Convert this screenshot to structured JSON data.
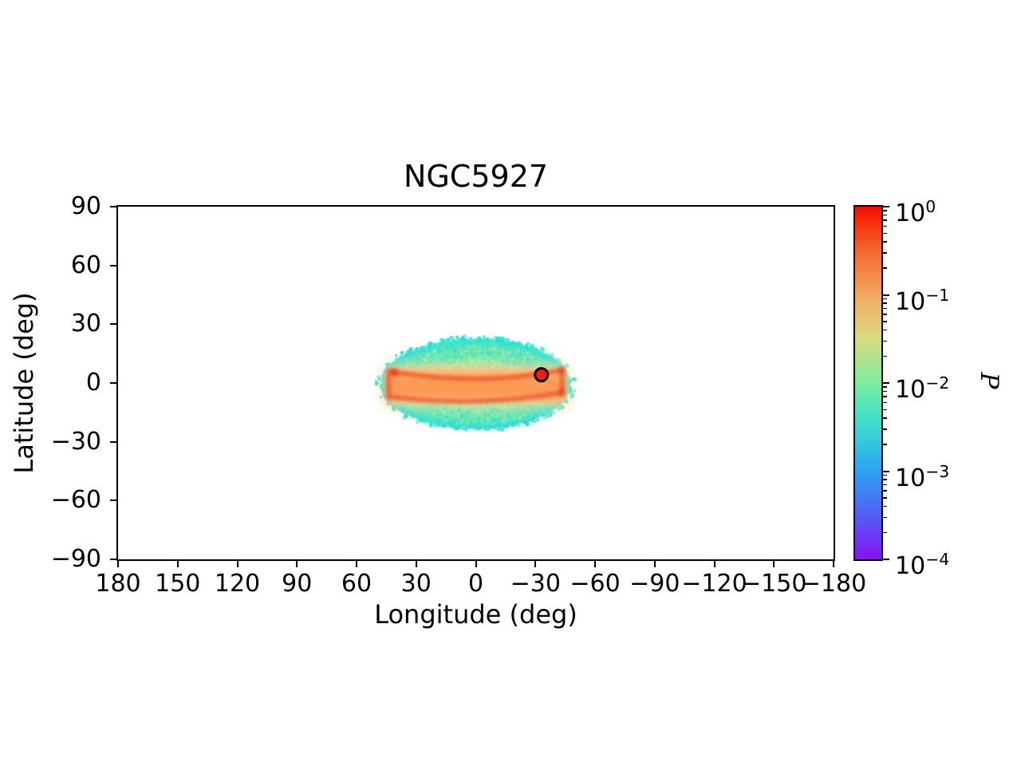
{
  "chart_data": {
    "type": "heatmap",
    "title": "NGC5927",
    "xlabel": "Longitude (deg)",
    "ylabel": "Latitude (deg)",
    "xlim": [
      180,
      -180
    ],
    "ylim": [
      -90,
      90
    ],
    "x_ticks": [
      180,
      150,
      120,
      90,
      60,
      30,
      0,
      -30,
      -60,
      -90,
      -120,
      -150,
      -180
    ],
    "y_ticks": [
      90,
      60,
      30,
      0,
      -30,
      -60,
      -90
    ],
    "grid": false,
    "colorbar": {
      "label": "P",
      "scale": "log",
      "colormap": "rainbow",
      "vmin": 0.0001,
      "vmax": 1,
      "tick_exponents": [
        0,
        -1,
        -2,
        -3,
        -4
      ],
      "tick_labels": [
        "10⁰",
        "10⁻¹",
        "10⁻²",
        "10⁻³",
        "10⁻⁴"
      ],
      "gradient_stops": [
        {
          "pos": 0,
          "color": "#f50800"
        },
        {
          "pos": 6,
          "color": "#f53c10"
        },
        {
          "pos": 12,
          "color": "#f4632b"
        },
        {
          "pos": 25,
          "color": "#f2a862"
        },
        {
          "pos": 37,
          "color": "#dcd97e"
        },
        {
          "pos": 50,
          "color": "#7cec9c"
        },
        {
          "pos": 58,
          "color": "#4ce2c0"
        },
        {
          "pos": 63,
          "color": "#3bd7d4"
        },
        {
          "pos": 75,
          "color": "#2ba2f1"
        },
        {
          "pos": 87,
          "color": "#4f63f5"
        },
        {
          "pos": 100,
          "color": "#8911f3"
        }
      ]
    },
    "density_map": {
      "description": "Probability density P of cluster debris in galactic coordinates; edge-on disc seen as orange band inside speckled mint/cyan halo ellipse",
      "halo_ellipse": {
        "lon_center": 0,
        "lat_center": -0.5,
        "lon_halfwidth": 47.5,
        "lat_halfheight": 23,
        "approx_level": 0.01
      },
      "disc_band": {
        "lon_range": [
          45,
          -45
        ],
        "lat_range": [
          7.5,
          -10.5
        ],
        "approx_level": 0.1
      },
      "ring_outline": {
        "lon_halfwidth": 44,
        "lat_upper_edge": 4.5,
        "lat_upper_mid": 1.8,
        "lat_lower_edge": -7,
        "lat_lower_mid": -11,
        "approx_level": 0.4
      },
      "marker": {
        "lon": -33,
        "lat": 4.2,
        "shape": "circle",
        "fill": "#fb1b15",
        "edge": "#000000"
      },
      "colors": {
        "halo_inner": "#b2f2ac",
        "halo_mid": "#8feca6",
        "halo_outer": "#3ee0d0",
        "speckle_green": [
          "#79ea9b",
          "#8beda5",
          "#62e6a8",
          "#9af0b0",
          "#55e3b6"
        ],
        "speckle_cyan": [
          "#3ae1cf",
          "#4de7d8",
          "#2bdcd2",
          "#42e4c6"
        ],
        "rim_cyan": "#2edfd3",
        "band_core": "#f99750",
        "band_edge": "#fdc988",
        "band_halo": "#fed9a1",
        "ring": "#ec5530",
        "hotspot": "#e63c1a"
      }
    }
  }
}
